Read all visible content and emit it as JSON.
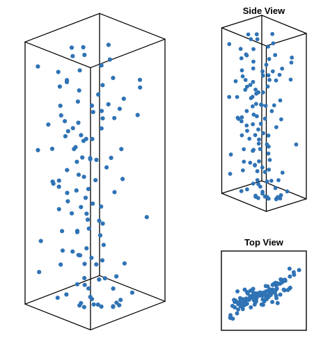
{
  "chart_data": [
    {
      "type": "scatter",
      "panel": "main-3d",
      "title": "",
      "color": "#2f73b5",
      "outline_color": "#000000",
      "points": [
        [
          -0.2,
          -0.14,
          0.972
        ],
        [
          -0.21,
          -0.1,
          0.94
        ],
        [
          0.23,
          0.16,
          0.986
        ],
        [
          -0.69,
          -0.02,
          0.94
        ],
        [
          -0.62,
          -0.21,
          0.83
        ],
        [
          -0.76,
          -0.32,
          0.86
        ],
        [
          0.25,
          0.18,
          0.93
        ],
        [
          0.78,
          0.52,
          0.86
        ],
        [
          0.67,
          0.62,
          0.82
        ],
        [
          -0.5,
          0.03,
          0.86
        ],
        [
          -0.44,
          -0.04,
          0.79
        ],
        [
          -0.66,
          -0.33,
          0.7
        ],
        [
          -0.74,
          -0.28,
          0.73
        ],
        [
          0.04,
          -0.12,
          0.76
        ],
        [
          0.22,
          0.01,
          0.84
        ],
        [
          0.34,
          0.06,
          0.77
        ],
        [
          0.56,
          0.28,
          0.79
        ],
        [
          0.48,
          0.24,
          0.75
        ],
        [
          0.29,
          -0.05,
          0.72
        ],
        [
          -0.48,
          -0.39,
          0.69
        ],
        [
          0.0,
          -0.05,
          0.73
        ],
        [
          -0.42,
          -0.08,
          0.67
        ],
        [
          -0.55,
          -0.24,
          0.64
        ],
        [
          0.12,
          -0.18,
          0.64
        ],
        [
          -0.82,
          -0.43,
          0.57
        ],
        [
          -0.6,
          -0.27,
          0.62
        ],
        [
          -0.35,
          0.0,
          0.6
        ],
        [
          -0.18,
          -0.08,
          0.62
        ],
        [
          0.44,
          0.32,
          0.59
        ],
        [
          0.18,
          -0.12,
          0.56
        ],
        [
          -0.35,
          -0.18,
          0.53
        ],
        [
          -0.48,
          -0.33,
          0.5
        ],
        [
          -0.23,
          -0.14,
          0.55
        ],
        [
          0.32,
          0.15,
          0.56
        ],
        [
          -0.33,
          -0.15,
          0.48
        ],
        [
          0.5,
          0.3,
          0.48
        ],
        [
          -0.6,
          -0.44,
          0.46
        ],
        [
          -0.14,
          -0.13,
          0.4
        ],
        [
          -0.51,
          -0.3,
          0.41
        ],
        [
          -0.26,
          -0.15,
          0.36
        ],
        [
          0.09,
          -0.14,
          0.39
        ],
        [
          -0.61,
          -0.43,
          0.35
        ],
        [
          -0.28,
          0.05,
          0.3
        ],
        [
          -0.46,
          -0.22,
          0.33
        ],
        [
          0.1,
          0.12,
          0.3
        ],
        [
          0.92,
          0.58,
          0.34
        ],
        [
          -0.36,
          -0.16,
          0.26
        ],
        [
          0.32,
          -0.14,
          0.28
        ],
        [
          0.23,
          0.03,
          0.23
        ],
        [
          -0.87,
          -0.69,
          0.23
        ],
        [
          -0.58,
          -0.36,
          0.19
        ],
        [
          -0.39,
          -0.26,
          0.19
        ],
        [
          -0.23,
          -0.2,
          0.18
        ],
        [
          0.04,
          -0.13,
          0.18
        ],
        [
          -0.24,
          -0.07,
          0.14
        ],
        [
          -0.57,
          -0.42,
          0.14
        ],
        [
          -0.2,
          -0.11,
          0.09
        ],
        [
          0.18,
          -0.05,
          0.1
        ],
        [
          -0.27,
          -0.24,
          0.07
        ],
        [
          0.34,
          0.19,
          0.06
        ],
        [
          0.02,
          -0.1,
          0.02
        ],
        [
          -0.19,
          -0.21,
          0.0
        ],
        [
          0.01,
          -0.3,
          0.0
        ],
        [
          0.69,
          0.08,
          0.04
        ],
        [
          -0.81,
          -0.79,
          0.12
        ],
        [
          -0.34,
          -0.47,
          0.04
        ],
        [
          0.33,
          -0.21,
          0.02
        ],
        [
          0.52,
          0.03,
          0.01
        ],
        [
          -0.24,
          -0.39,
          0.95
        ],
        [
          -0.87,
          -0.77,
          0.9
        ],
        [
          -0.7,
          -0.64,
          0.68
        ],
        [
          -0.22,
          -0.33,
          0.6
        ],
        [
          0.07,
          -0.24,
          0.45
        ],
        [
          0.14,
          -0.01,
          0.32
        ],
        [
          -0.04,
          -0.14,
          0.06
        ],
        [
          0.06,
          -0.02,
          0.15
        ],
        [
          0.43,
          0.2,
          0.01
        ],
        [
          0.25,
          -0.05,
          0.0
        ],
        [
          -0.12,
          -0.06,
          0.28
        ],
        [
          -0.2,
          -0.3,
          0.28
        ],
        [
          -0.06,
          -0.39,
          0.2
        ],
        [
          0.36,
          -0.35,
          0.03
        ],
        [
          0.54,
          0.01,
          0.01
        ],
        [
          0.68,
          0.4,
          0.05
        ],
        [
          0.67,
          0.06,
          0.02
        ],
        [
          -0.02,
          -0.4,
          0.01
        ],
        [
          -0.55,
          -0.52,
          0.02
        ],
        [
          0.3,
          0.22,
          0.86
        ],
        [
          0.19,
          0.01,
          0.74
        ],
        [
          -0.33,
          -0.17,
          0.76
        ],
        [
          -0.39,
          -0.25,
          0.66
        ],
        [
          -0.67,
          -0.53,
          0.45
        ],
        [
          0.06,
          -0.18,
          0.56
        ],
        [
          0.14,
          -0.11,
          0.48
        ],
        [
          0.32,
          0.03,
          0.53
        ],
        [
          0.79,
          0.45,
          0.73
        ],
        [
          0.11,
          -0.01,
          0.8
        ],
        [
          0.35,
          0.21,
          0.71
        ],
        [
          -0.38,
          -0.23,
          0.58
        ],
        [
          -0.26,
          -0.27,
          0.43
        ],
        [
          -0.67,
          -0.38,
          0.43
        ],
        [
          -0.53,
          -0.42,
          0.27
        ],
        [
          0.2,
          0.02,
          0.17
        ],
        [
          0.43,
          -0.11,
          0.12
        ],
        [
          -0.88,
          -0.76,
          0.58
        ],
        [
          -0.76,
          -0.47,
          0.45
        ],
        [
          -0.1,
          -0.14,
          0.21
        ],
        [
          0.55,
          0.31,
          0.16
        ],
        [
          -0.12,
          -0.12,
          0.34
        ],
        [
          -0.27,
          -0.06,
          0.47
        ],
        [
          0.23,
          -0.04,
          0.38
        ],
        [
          -0.44,
          -0.37,
          0.84
        ],
        [
          0.15,
          0.04,
          0.91
        ],
        [
          0.05,
          0.13,
          0.66
        ],
        [
          -0.09,
          -0.05,
          0.55
        ],
        [
          -0.2,
          -0.2,
          0.64
        ],
        [
          -0.48,
          -0.31,
          0.38
        ],
        [
          0.38,
          0.19,
          0.43
        ],
        [
          -0.03,
          -0.25,
          0.08
        ],
        [
          0.22,
          -0.32,
          0.05
        ],
        [
          0.63,
          0.02,
          0.13
        ],
        [
          -0.78,
          -0.26,
          0.8
        ]
      ]
    },
    {
      "type": "scatter",
      "panel": "side-view",
      "title": "Side View"
    },
    {
      "type": "scatter",
      "panel": "top-view",
      "title": "Top View"
    }
  ]
}
